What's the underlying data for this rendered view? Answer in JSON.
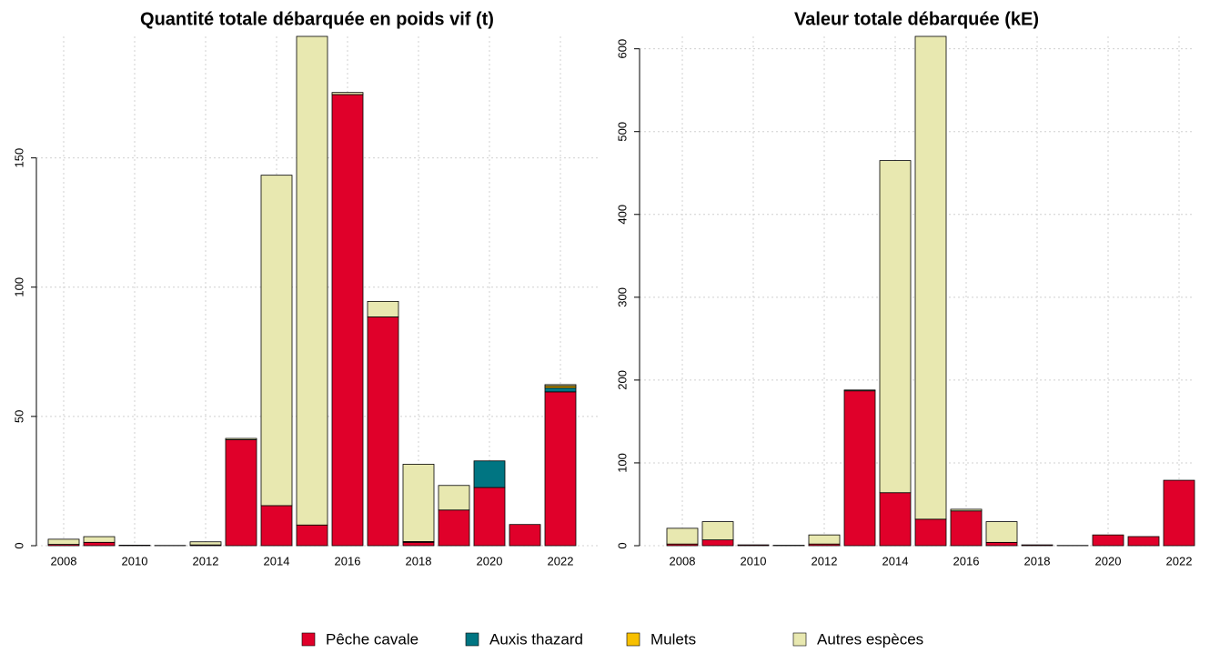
{
  "chart_data": [
    {
      "type": "bar",
      "stacked": true,
      "title": "Quantité totale débarquée en poids vif (t)",
      "categories": [
        "2008",
        null,
        "2010",
        null,
        "2012",
        null,
        "2014",
        null,
        "2016",
        null,
        "2018",
        null,
        "2020",
        null,
        "2022"
      ],
      "ylim": [
        0,
        197
      ],
      "yticks": [
        0,
        50,
        100,
        150
      ],
      "grid": true,
      "series": [
        {
          "name": "Pêche cavale",
          "color": "#e0002a",
          "values": [
            0.5,
            1.3,
            0.2,
            0.1,
            0.3,
            41,
            15.5,
            8,
            174.5,
            88.5,
            1.3,
            13.8,
            22.5,
            8.2,
            59.5
          ]
        },
        {
          "name": "Auxis thazard",
          "color": "#007582",
          "values": [
            0,
            0,
            0,
            0,
            0,
            0,
            0,
            0,
            0,
            0,
            0,
            0,
            10.3,
            0,
            1.5
          ]
        },
        {
          "name": "Mulets",
          "color": "#f7c000",
          "values": [
            0,
            0,
            0,
            0,
            0,
            0,
            0,
            0,
            0,
            0,
            0.3,
            0,
            0,
            0,
            0.8
          ]
        },
        {
          "name": "Autres espèces",
          "color": "#e8e8b0",
          "values": [
            2,
            2.2,
            0,
            0,
            1.2,
            0.5,
            127.8,
            189,
            0.8,
            6,
            29.9,
            9.5,
            0,
            0,
            0.5
          ]
        }
      ]
    },
    {
      "type": "bar",
      "stacked": true,
      "title": "Valeur totale débarquée (kE)",
      "categories": [
        "2008",
        null,
        "2010",
        null,
        "2012",
        null,
        "2014",
        null,
        "2016",
        null,
        "2018",
        null,
        "2020",
        null,
        "2022"
      ],
      "ylim": [
        0,
        615
      ],
      "yticks": [
        0,
        100,
        200,
        300,
        400,
        500,
        600
      ],
      "grid": true,
      "series": [
        {
          "name": "Pêche cavale",
          "color": "#e0002a",
          "values": [
            2,
            7,
            1,
            0.5,
            2,
            187,
            64,
            32,
            42,
            4,
            1,
            0.3,
            13,
            11,
            79
          ]
        },
        {
          "name": "Auxis thazard",
          "color": "#007582",
          "values": [
            0,
            0,
            0,
            0,
            0,
            0,
            0,
            0,
            0,
            0,
            0,
            0,
            0,
            0,
            0
          ]
        },
        {
          "name": "Mulets",
          "color": "#f7c000",
          "values": [
            0,
            0,
            0,
            0,
            0,
            0,
            0,
            0,
            0,
            0,
            0,
            0,
            0,
            0,
            0
          ]
        },
        {
          "name": "Autres espèces",
          "color": "#e8e8b0",
          "values": [
            19,
            22,
            0,
            0,
            11,
            1,
            401,
            583,
            2,
            25,
            0,
            0,
            0,
            0,
            0
          ]
        }
      ]
    }
  ]
}
